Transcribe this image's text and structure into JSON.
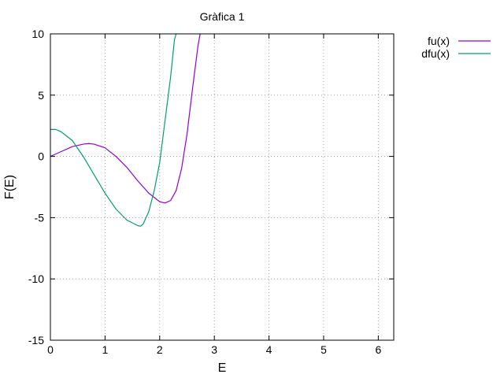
{
  "chart_data": {
    "type": "line",
    "title": "Gràfica 1",
    "xlabel": "E",
    "ylabel": "F(E)",
    "xlim": [
      0,
      6.283
    ],
    "ylim": [
      -15,
      10
    ],
    "xticks": [
      0,
      1,
      2,
      3,
      4,
      5,
      6
    ],
    "yticks": [
      -15,
      -10,
      -5,
      0,
      5,
      10
    ],
    "grid": true,
    "legend_position": "top-right, outside plot area",
    "series": [
      {
        "name": "fu(x)",
        "color": "#9400d3",
        "x": [
          0,
          0.2,
          0.4,
          0.6,
          0.7,
          0.8,
          1.0,
          1.2,
          1.4,
          1.6,
          1.8,
          2.0,
          2.1,
          2.2,
          2.3,
          2.4,
          2.5,
          2.6,
          2.7,
          2.74
        ],
        "y": [
          0,
          0.4,
          0.8,
          1.0,
          1.05,
          1.0,
          0.7,
          0.0,
          -0.9,
          -2.0,
          -3.0,
          -3.7,
          -3.8,
          -3.6,
          -2.8,
          -1.0,
          1.8,
          5.5,
          9.0,
          10
        ]
      },
      {
        "name": "dfu(x)",
        "color": "#009e73",
        "x": [
          0,
          0.1,
          0.2,
          0.4,
          0.6,
          0.8,
          1.0,
          1.2,
          1.4,
          1.6,
          1.65,
          1.7,
          1.8,
          1.9,
          2.0,
          2.1,
          2.2,
          2.27,
          2.3
        ],
        "y": [
          2.2,
          2.2,
          2.0,
          1.3,
          0.0,
          -1.5,
          -3.0,
          -4.3,
          -5.2,
          -5.65,
          -5.7,
          -5.5,
          -4.5,
          -2.8,
          -0.5,
          3.0,
          6.5,
          9.5,
          10
        ]
      }
    ]
  }
}
